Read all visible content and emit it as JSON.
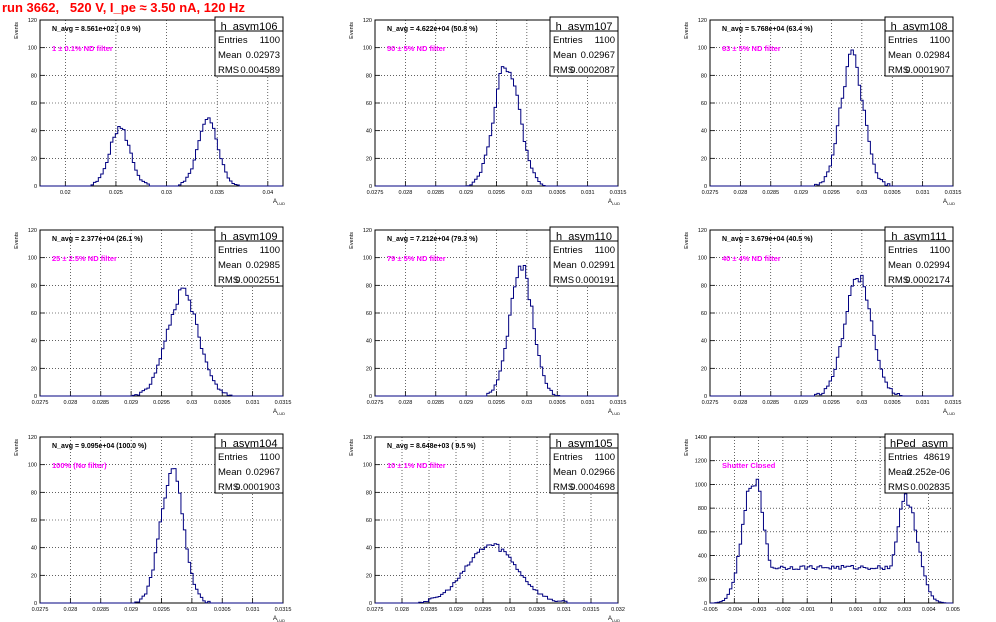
{
  "page": {
    "title": "run 3662,   520 V, I_pe ≈ 3.50 nA, 120 Hz",
    "colors": {
      "title": "#ff0000",
      "annotation": "#ff00ff",
      "histogram": "#000080",
      "frame": "#000000",
      "grid": "#000000"
    }
  },
  "chart_data": [
    {
      "type": "histogram",
      "hist_name": "h_asym106",
      "ylabel": "Events",
      "xlabel": "A",
      "navg_text": "N_avg = 8.561e+02 ( 0.9 %)",
      "filter_text": "1 ± 0.1% ND filter",
      "stats": [
        [
          "Entries",
          "1100"
        ],
        [
          "Mean",
          "0.02973"
        ],
        [
          "RMS",
          "0.004589"
        ]
      ],
      "xlim": [
        0.0175,
        0.0415
      ],
      "ylim": [
        0,
        120
      ],
      "xticks": [
        "0.02",
        "0.025",
        "0.03",
        "0.035",
        "0.04"
      ],
      "yticks": [
        "0",
        "20",
        "40",
        "60",
        "80",
        "100",
        "120"
      ],
      "grid": true,
      "peaks": [
        {
          "mu": 0.0254,
          "sigma": 0.001,
          "height": 42
        },
        {
          "mu": 0.0341,
          "sigma": 0.001,
          "height": 47
        }
      ]
    },
    {
      "type": "histogram",
      "hist_name": "h_asym107",
      "ylabel": "Events",
      "xlabel": "A",
      "navg_text": "N_avg = 4.622e+04 (50.8 %)",
      "filter_text": "50 ± 5% ND filter",
      "stats": [
        [
          "Entries",
          "1100"
        ],
        [
          "Mean",
          "0.02967"
        ],
        [
          "RMS",
          "0.0002087"
        ]
      ],
      "xlim": [
        0.0275,
        0.0315
      ],
      "ylim": [
        0,
        120
      ],
      "xticks": [
        "0.0275",
        "0.028",
        "0.0285",
        "0.029",
        "0.0295",
        "0.03",
        "0.0305",
        "0.031",
        "0.0315"
      ],
      "yticks": [
        "0",
        "20",
        "40",
        "60",
        "80",
        "100",
        "120"
      ],
      "grid": true,
      "peaks": [
        {
          "mu": 0.02967,
          "sigma": 0.00021,
          "height": 88
        }
      ]
    },
    {
      "type": "histogram",
      "hist_name": "h_asym108",
      "ylabel": "Events",
      "xlabel": "A",
      "navg_text": "N_avg = 5.768e+04 (63.4 %)",
      "filter_text": "63 ± 5% ND filter",
      "stats": [
        [
          "Entries",
          "1100"
        ],
        [
          "Mean",
          "0.02984"
        ],
        [
          "RMS",
          "0.0001907"
        ]
      ],
      "xlim": [
        0.0275,
        0.0315
      ],
      "ylim": [
        0,
        120
      ],
      "xticks": [
        "0.0275",
        "0.028",
        "0.0285",
        "0.029",
        "0.0295",
        "0.03",
        "0.0305",
        "0.031",
        "0.0315"
      ],
      "yticks": [
        "0",
        "20",
        "40",
        "60",
        "80",
        "100",
        "120"
      ],
      "grid": true,
      "peaks": [
        {
          "mu": 0.02984,
          "sigma": 0.00019,
          "height": 93
        }
      ]
    },
    {
      "type": "histogram",
      "hist_name": "h_asym109",
      "ylabel": "Events",
      "xlabel": "A",
      "navg_text": "N_avg = 2.377e+04 (26.1 %)",
      "filter_text": "25 ± 2.5% ND filter",
      "stats": [
        [
          "Entries",
          "1100"
        ],
        [
          "Mean",
          "0.02985"
        ],
        [
          "RMS",
          "0.0002551"
        ]
      ],
      "xlim": [
        0.0275,
        0.0315
      ],
      "ylim": [
        0,
        120
      ],
      "xticks": [
        "0.0275",
        "0.028",
        "0.0285",
        "0.029",
        "0.0295",
        "0.03",
        "0.0305",
        "0.031",
        "0.0315"
      ],
      "yticks": [
        "0",
        "20",
        "40",
        "60",
        "80",
        "100",
        "120"
      ],
      "grid": true,
      "peaks": [
        {
          "mu": 0.02985,
          "sigma": 0.00026,
          "height": 74
        }
      ]
    },
    {
      "type": "histogram",
      "hist_name": "h_asym110",
      "ylabel": "Events",
      "xlabel": "A",
      "navg_text": "N_avg = 7.212e+04 (79.3 %)",
      "filter_text": "79 ± 5% ND filter",
      "stats": [
        [
          "Entries",
          "1100"
        ],
        [
          "Mean",
          "0.02991"
        ],
        [
          "RMS",
          "0.000191"
        ]
      ],
      "xlim": [
        0.0275,
        0.0315
      ],
      "ylim": [
        0,
        120
      ],
      "xticks": [
        "0.0275",
        "0.028",
        "0.0285",
        "0.029",
        "0.0295",
        "0.03",
        "0.0305",
        "0.031",
        "0.0315"
      ],
      "yticks": [
        "0",
        "20",
        "40",
        "60",
        "80",
        "100",
        "120"
      ],
      "grid": true,
      "peaks": [
        {
          "mu": 0.02991,
          "sigma": 0.00019,
          "height": 93
        }
      ]
    },
    {
      "type": "histogram",
      "hist_name": "h_asym111",
      "ylabel": "Events",
      "xlabel": "A",
      "navg_text": "N_avg = 3.679e+04 (40.5 %)",
      "filter_text": "40 ± 4% ND filter",
      "stats": [
        [
          "Entries",
          "1100"
        ],
        [
          "Mean",
          "0.02994"
        ],
        [
          "RMS",
          "0.0002174"
        ]
      ],
      "xlim": [
        0.0275,
        0.0315
      ],
      "ylim": [
        0,
        120
      ],
      "xticks": [
        "0.0275",
        "0.028",
        "0.0285",
        "0.029",
        "0.0295",
        "0.03",
        "0.0305",
        "0.031",
        "0.0315"
      ],
      "yticks": [
        "0",
        "20",
        "40",
        "60",
        "80",
        "100",
        "120"
      ],
      "grid": true,
      "peaks": [
        {
          "mu": 0.02994,
          "sigma": 0.00022,
          "height": 88
        }
      ]
    },
    {
      "type": "histogram",
      "hist_name": "h_asym104",
      "ylabel": "Events",
      "xlabel": "A",
      "navg_text": "N_avg = 9.095e+04 (100.0 %)",
      "filter_text": "100% (No filter)",
      "stats": [
        [
          "Entries",
          "1100"
        ],
        [
          "Mean",
          "0.02967"
        ],
        [
          "RMS",
          "0.0001903"
        ]
      ],
      "xlim": [
        0.0275,
        0.0315
      ],
      "ylim": [
        0,
        120
      ],
      "xticks": [
        "0.0275",
        "0.028",
        "0.0285",
        "0.029",
        "0.0295",
        "0.03",
        "0.0305",
        "0.031",
        "0.0315"
      ],
      "yticks": [
        "0",
        "20",
        "40",
        "60",
        "80",
        "100",
        "120"
      ],
      "grid": true,
      "peaks": [
        {
          "mu": 0.02967,
          "sigma": 0.00019,
          "height": 95
        }
      ]
    },
    {
      "type": "histogram",
      "hist_name": "h_asym105",
      "ylabel": "Events",
      "xlabel": "A",
      "navg_text": "N_avg = 8.648e+03 ( 9.5 %)",
      "filter_text": "10 ± 1% ND filter",
      "stats": [
        [
          "Entries",
          "1100"
        ],
        [
          "Mean",
          "0.02966"
        ],
        [
          "RMS",
          "0.0004698"
        ]
      ],
      "xlim": [
        0.0275,
        0.032
      ],
      "ylim": [
        0,
        120
      ],
      "xticks": [
        "0.0275",
        "0.028",
        "0.0285",
        "0.029",
        "0.0295",
        "0.03",
        "0.0305",
        "0.031",
        "0.0315",
        "0.032"
      ],
      "yticks": [
        "0",
        "20",
        "40",
        "60",
        "80",
        "100",
        "120"
      ],
      "grid": true,
      "peaks": [
        {
          "mu": 0.02966,
          "sigma": 0.00047,
          "height": 42
        }
      ]
    },
    {
      "type": "histogram",
      "hist_name": "hPed_asym",
      "ylabel": "Events",
      "xlabel": "",
      "navg_text": "",
      "filter_text": "Shutter Closed",
      "stats": [
        [
          "Entries",
          "48619"
        ],
        [
          "Mean",
          "2.252e-06"
        ],
        [
          "RMS",
          "0.002835"
        ]
      ],
      "xlim": [
        -0.005,
        0.005
      ],
      "ylim": [
        0,
        1400
      ],
      "xticks": [
        "-0.005",
        "-0.004",
        "-0.003",
        "-0.002",
        "-0.001",
        "0",
        "0.001",
        "0.002",
        "0.003",
        "0.004",
        "0.005"
      ],
      "yticks": [
        "0",
        "200",
        "400",
        "600",
        "800",
        "1000",
        "1200",
        "1400"
      ],
      "grid": true,
      "peaks": [
        {
          "mu": -0.0032,
          "sigma": 0.00045,
          "height": 1050
        },
        {
          "mu": 0.0031,
          "sigma": 0.00045,
          "height": 880
        }
      ],
      "floor": 300
    }
  ]
}
